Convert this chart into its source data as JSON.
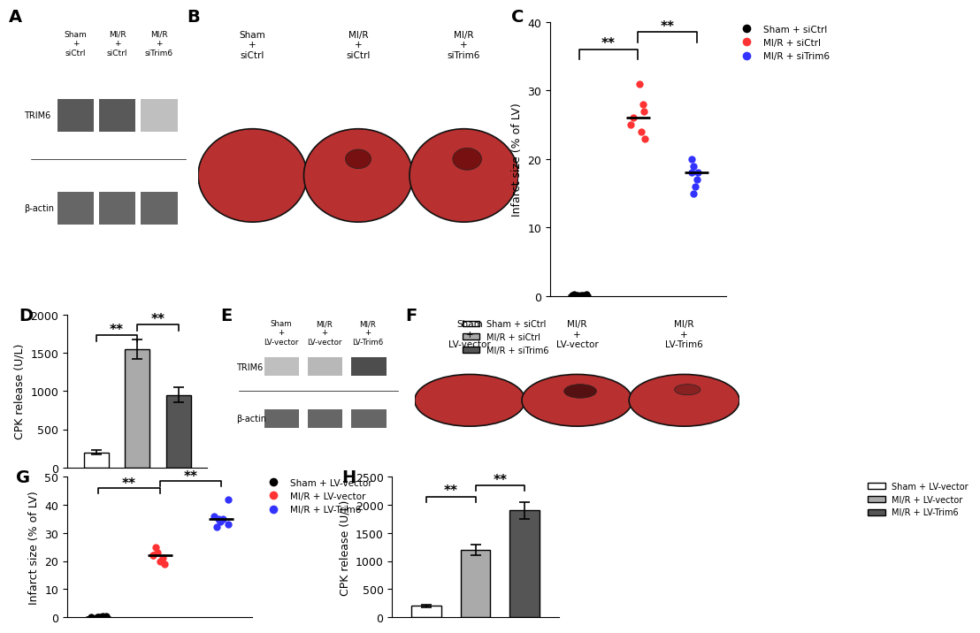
{
  "panel_C": {
    "group_labels": [
      "Sham + siCtrl",
      "MI/R + siCtrl",
      "MI/R + siTrim6"
    ],
    "colors": [
      "black",
      "#FF3333",
      "#3333FF"
    ],
    "data": [
      [
        0.1,
        0.2,
        0.15,
        0.1,
        0.2,
        0.15,
        0.1
      ],
      [
        27,
        31,
        24,
        25,
        23,
        28,
        26
      ],
      [
        18,
        20,
        15,
        17,
        16,
        19,
        18
      ]
    ],
    "ylabel": "Infarct size (% of LV)",
    "ylim": [
      0,
      40
    ],
    "yticks": [
      0,
      10,
      20,
      30,
      40
    ],
    "x_positions": [
      1,
      2,
      3
    ]
  },
  "panel_D": {
    "group_labels": [
      "Sham + siCtrl",
      "MI/R + siCtrl",
      "MI/R + siTrim6"
    ],
    "colors": [
      "white",
      "#AAAAAA",
      "#555555"
    ],
    "edge_colors": [
      "black",
      "black",
      "black"
    ],
    "values": [
      200,
      1550,
      950
    ],
    "errors": [
      25,
      130,
      100
    ],
    "ylabel": "CPK release (U/L)",
    "ylim": [
      0,
      2000
    ],
    "yticks": [
      0,
      500,
      1000,
      1500,
      2000
    ]
  },
  "panel_G": {
    "group_labels": [
      "Sham + LV-vector",
      "MI/R + LV-vector",
      "MI/R + LV-Trim6"
    ],
    "colors": [
      "black",
      "#FF3333",
      "#3333FF"
    ],
    "data": [
      [
        0.1,
        0.2,
        0.15,
        0.1,
        0.2,
        0.15,
        0.1
      ],
      [
        22,
        25,
        20,
        21,
        19,
        23,
        22
      ],
      [
        35,
        42,
        32,
        34,
        33,
        36,
        35
      ]
    ],
    "ylabel": "Infarct size (% of LV)",
    "ylim": [
      0,
      50
    ],
    "yticks": [
      0,
      10,
      20,
      30,
      40,
      50
    ],
    "x_positions": [
      1,
      2,
      3
    ]
  },
  "panel_H": {
    "group_labels": [
      "Sham + LV-vector",
      "MI/R + LV-vector",
      "MI/R + LV-Trim6"
    ],
    "colors": [
      "white",
      "#AAAAAA",
      "#555555"
    ],
    "edge_colors": [
      "black",
      "black",
      "black"
    ],
    "values": [
      200,
      1200,
      1900
    ],
    "errors": [
      25,
      90,
      150
    ],
    "ylabel": "CPK release (U/L)",
    "ylim": [
      0,
      2500
    ],
    "yticks": [
      0,
      500,
      1000,
      1500,
      2000,
      2500
    ]
  },
  "fontsize_label": 14,
  "fontsize_tick": 9,
  "fontsize_sig": 11,
  "background_color": "#FFFFFF"
}
